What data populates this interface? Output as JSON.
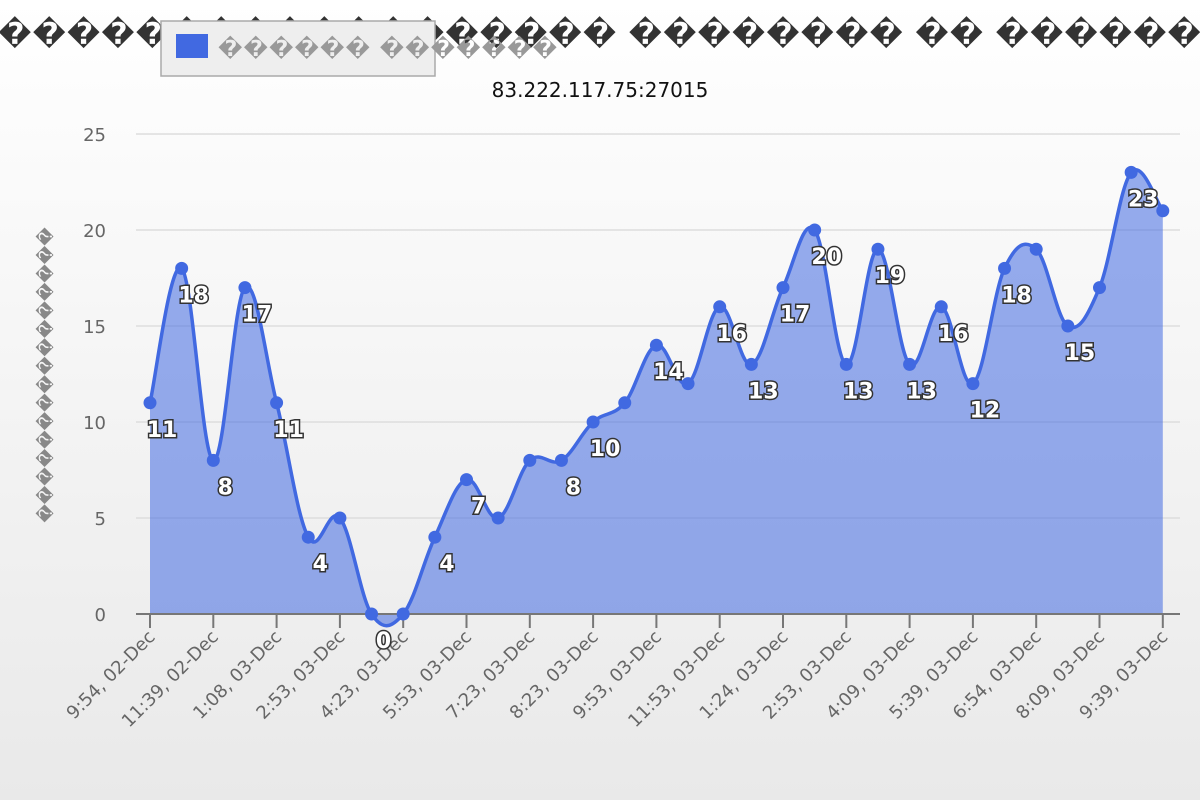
{
  "chart_data": {
    "type": "area",
    "title": "������������������ �������� �� ������",
    "subtitle": "83.222.117.75:27015",
    "ylabel": "����������������",
    "ylim": [
      0,
      25
    ],
    "yticks": [
      0,
      5,
      10,
      15,
      20,
      25
    ],
    "grid": true,
    "legend_position": "top-left",
    "colors": {
      "line": "#4169e1",
      "fill": "#4169e1",
      "point": "#4169e1"
    },
    "categories": [
      "9:54, 02-Dec",
      "11:39, 02-Dec",
      "1:08, 03-Dec",
      "2:53, 03-Dec",
      "4:23, 03-Dec",
      "5:53, 03-Dec",
      "7:23, 03-Dec",
      "8:23, 03-Dec",
      "9:53, 03-Dec",
      "11:53, 03-Dec",
      "1:24, 03-Dec",
      "2:53, 03-Dec",
      "4:09, 03-Dec",
      "5:39, 03-Dec",
      "6:54, 03-Dec",
      "8:09, 03-Dec",
      "9:39, 03-Dec"
    ],
    "series": [
      {
        "name": "������ �������",
        "x": [
          0,
          0.5,
          1,
          1.5,
          2,
          2.5,
          3,
          3.5,
          4,
          4.5,
          5,
          5.5,
          6,
          6.5,
          7,
          7.5,
          8,
          8.5,
          9,
          9.5,
          10,
          10.5,
          11,
          11.5,
          12,
          12.5,
          13,
          13.5,
          14,
          14.5,
          15,
          15.5,
          16
        ],
        "values": [
          11,
          18,
          8,
          17,
          11,
          4,
          5,
          0,
          0,
          4,
          7,
          5,
          8,
          8,
          10,
          11,
          14,
          12,
          16,
          13,
          17,
          20,
          13,
          19,
          13,
          16,
          12,
          18,
          19,
          15,
          17,
          23,
          21
        ],
        "labels": [
          "11",
          "18",
          "8",
          "17",
          "11",
          "4",
          "",
          "0",
          "",
          "4",
          "7",
          "",
          "",
          "8",
          "10",
          "",
          "14",
          "",
          "16",
          "13",
          "17",
          "20",
          "13",
          "19",
          "13",
          "16",
          "12",
          "18",
          "",
          "15",
          "",
          "23",
          ""
        ]
      }
    ]
  }
}
